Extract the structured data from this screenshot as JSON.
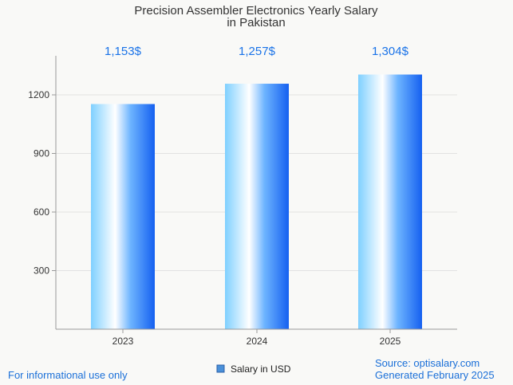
{
  "chart_data": {
    "type": "bar",
    "title_lines": [
      "Precision Assembler Electronics Yearly Salary",
      "in Pakistan"
    ],
    "categories": [
      "2023",
      "2024",
      "2025"
    ],
    "values": [
      1153,
      1257,
      1304
    ],
    "value_labels": [
      "1,153$",
      "1,257$",
      "1,304$"
    ],
    "y_ticks": [
      300,
      600,
      900,
      1200
    ],
    "ylim": [
      0,
      1400
    ],
    "grid": true,
    "legend": {
      "label": "Salary in USD",
      "placement": "bottom-center",
      "color": "#4a90d9"
    },
    "colors": {
      "bar_light": "#ffffff",
      "bar_mid": "#7fc8ff",
      "bar_dark": "#1560f0",
      "value_label": "#1a73e8"
    }
  },
  "footer": {
    "disclaimer": "For informational use only",
    "source": "Source: optisalary.com",
    "generated": "Generated February 2025"
  }
}
